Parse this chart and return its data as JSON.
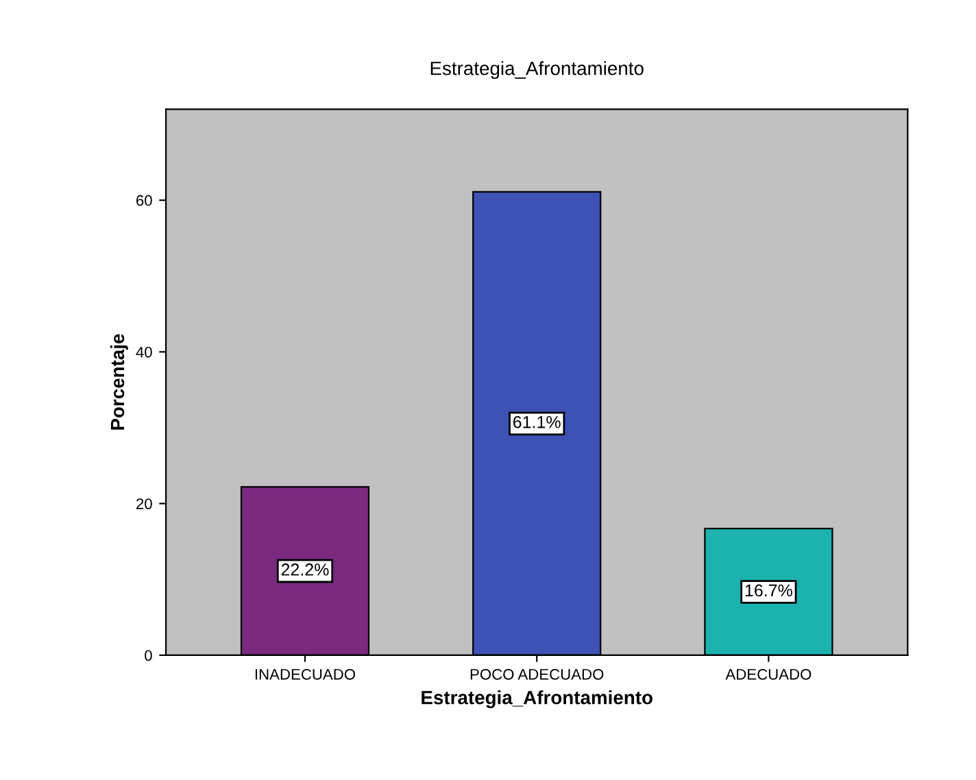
{
  "chart_data": {
    "type": "bar",
    "title": "Estrategia_Afrontamiento",
    "xlabel": "Estrategia_Afrontamiento",
    "ylabel": "Porcentaje",
    "categories": [
      "INADECUADO",
      "POCO ADECUADO",
      "ADECUADO"
    ],
    "values": [
      22.2,
      61.1,
      16.7
    ],
    "colors": [
      "#7b2a80",
      "#3d52b4",
      "#1cb2ad"
    ],
    "value_labels": [
      "22.2%",
      "61.1%",
      "16.7%"
    ],
    "ylim": [
      0,
      72
    ],
    "yticks": [
      0,
      20,
      40,
      60
    ],
    "grid": false
  }
}
